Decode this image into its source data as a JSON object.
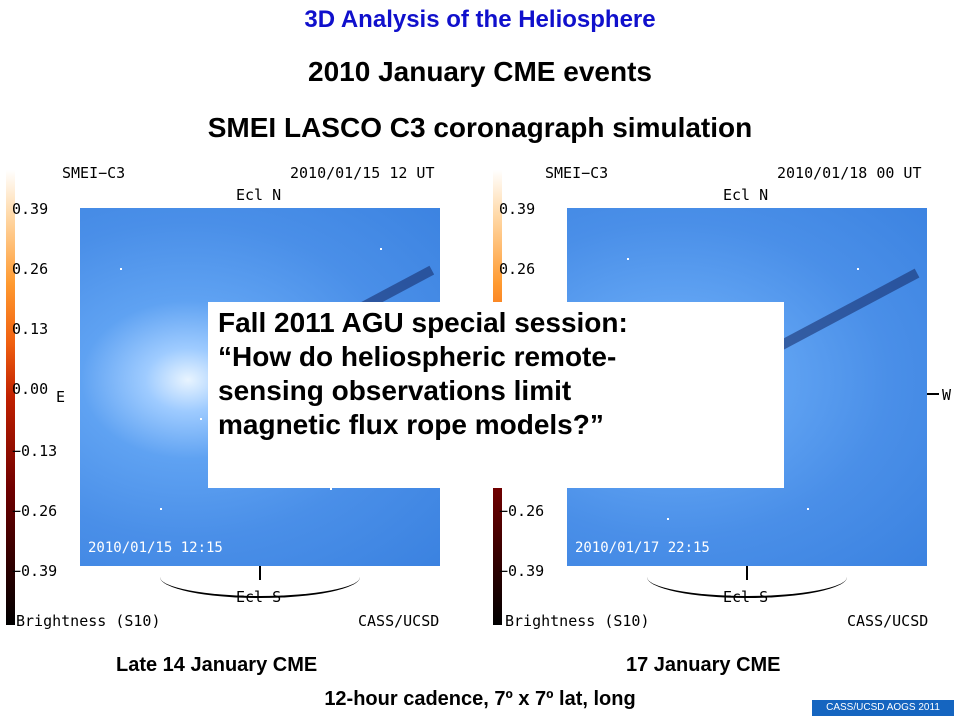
{
  "header": "3D Analysis of the Heliosphere",
  "title": "2010 January CME events",
  "subtitle": "SMEI LASCO C3 coronagraph simulation",
  "panels": [
    {
      "name": "SMEI−C3",
      "date": "2010/01/15 12 UT",
      "timestamp": "2010/01/15 12:15",
      "ecl_n": "Ecl N",
      "ecl_s": "Ecl S",
      "east": "E",
      "brightness": "Brightness (S10)",
      "credit": "CASS/UCSD",
      "caption": "Late 14 January CME"
    },
    {
      "name": "SMEI−C3",
      "date": "2010/01/18 00 UT",
      "timestamp": "2010/01/17 22:15",
      "ecl_n": "Ecl N",
      "ecl_s": "Ecl S",
      "west": "W",
      "brightness": "Brightness (S10)",
      "credit": "CASS/UCSD",
      "caption": "17 January CME"
    }
  ],
  "colorbar_ticks": [
    "0.39",
    "0.26",
    "0.13",
    "0.00",
    "−0.13",
    "−0.26",
    "−0.39"
  ],
  "overlay": {
    "line1": "Fall 2011 AGU special session:",
    "line2": "“How do heliospheric remote-",
    "line3": "sensing observations limit",
    "line4": "magnetic flux rope models?”"
  },
  "bottom_text": "12-hour cadence, 7º x 7º lat, long",
  "corner_badge": "CASS/UCSD AOGS 2011",
  "colors": {
    "header": "#1010cc",
    "image_blue": "#4a8fe8",
    "badge": "#1565c0"
  }
}
